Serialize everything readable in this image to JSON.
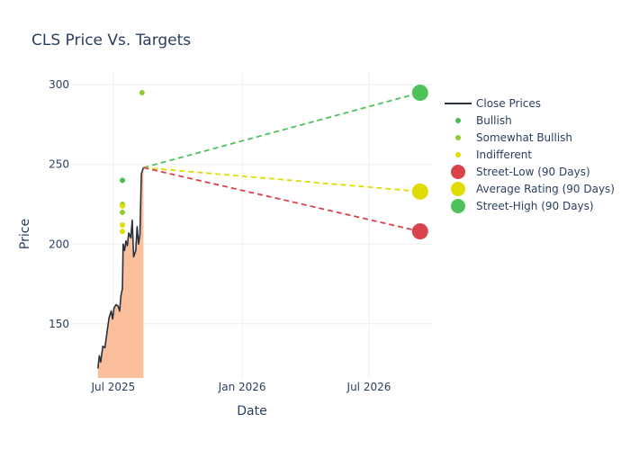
{
  "chart_data": {
    "type": "line",
    "title": "CLS Price Vs. Targets",
    "xlabel": "Date",
    "ylabel": "Price",
    "xlim": [
      "2025-05-03",
      "2026-09-29"
    ],
    "ylim": [
      116,
      308
    ],
    "x_ticks": [
      {
        "date": "2025-07-01",
        "label": "Jul 2025"
      },
      {
        "date": "2026-01-01",
        "label": "Jan 2026"
      },
      {
        "date": "2026-07-01",
        "label": "Jul 2026"
      }
    ],
    "y_ticks": [
      150,
      200,
      250,
      300
    ],
    "grid": true,
    "legend_placement": "top-right",
    "close_prices": [
      {
        "date": "2025-06-09",
        "price": 122
      },
      {
        "date": "2025-06-11",
        "price": 130
      },
      {
        "date": "2025-06-13",
        "price": 126
      },
      {
        "date": "2025-06-16",
        "price": 136
      },
      {
        "date": "2025-06-19",
        "price": 135
      },
      {
        "date": "2025-06-23",
        "price": 148
      },
      {
        "date": "2025-06-25",
        "price": 154
      },
      {
        "date": "2025-06-28",
        "price": 158
      },
      {
        "date": "2025-06-30",
        "price": 153
      },
      {
        "date": "2025-07-02",
        "price": 160
      },
      {
        "date": "2025-07-05",
        "price": 162
      },
      {
        "date": "2025-07-08",
        "price": 161
      },
      {
        "date": "2025-07-10",
        "price": 158
      },
      {
        "date": "2025-07-12",
        "price": 168
      },
      {
        "date": "2025-07-14",
        "price": 172
      },
      {
        "date": "2025-07-15",
        "price": 200
      },
      {
        "date": "2025-07-17",
        "price": 196
      },
      {
        "date": "2025-07-19",
        "price": 202
      },
      {
        "date": "2025-07-21",
        "price": 199
      },
      {
        "date": "2025-07-23",
        "price": 207
      },
      {
        "date": "2025-07-26",
        "price": 204
      },
      {
        "date": "2025-07-28",
        "price": 215
      },
      {
        "date": "2025-07-30",
        "price": 192
      },
      {
        "date": "2025-08-02",
        "price": 196
      },
      {
        "date": "2025-08-04",
        "price": 211
      },
      {
        "date": "2025-08-06",
        "price": 200
      },
      {
        "date": "2025-08-08",
        "price": 206
      },
      {
        "date": "2025-08-10",
        "price": 244
      },
      {
        "date": "2025-08-13",
        "price": 248
      }
    ],
    "rating_points": [
      {
        "date": "2025-07-14",
        "price": 240,
        "rating": "Bullish"
      },
      {
        "date": "2025-07-14",
        "price": 225,
        "rating": "Somewhat Bullish"
      },
      {
        "date": "2025-07-14",
        "price": 220,
        "rating": "Somewhat Bullish"
      },
      {
        "date": "2025-08-11",
        "price": 295,
        "rating": "Somewhat Bullish"
      },
      {
        "date": "2025-07-14",
        "price": 224,
        "rating": "Indifferent"
      },
      {
        "date": "2025-07-14",
        "price": 212,
        "rating": "Indifferent"
      },
      {
        "date": "2025-07-14",
        "price": 208,
        "rating": "Indifferent"
      }
    ],
    "targets": {
      "start": {
        "date": "2025-08-13",
        "price": 248
      },
      "end_date": "2026-09-12",
      "street_low": 208,
      "average": 233,
      "street_high": 295
    },
    "series": [
      {
        "name": "Close Prices",
        "color": "#2a3240",
        "marker": "line"
      },
      {
        "name": "Bullish",
        "color": "#4cbb50",
        "marker": "small-dot"
      },
      {
        "name": "Somewhat Bullish",
        "color": "#8fcb2f",
        "marker": "small-dot"
      },
      {
        "name": "Indifferent",
        "color": "#e2dc00",
        "marker": "small-dot"
      },
      {
        "name": "Street-Low (90 Days)",
        "color": "#d9434b",
        "marker": "large-dot"
      },
      {
        "name": "Average Rating (90 Days)",
        "color": "#e0dc00",
        "marker": "large-dot"
      },
      {
        "name": "Street-High (90 Days)",
        "color": "#4ec25a",
        "marker": "large-dot"
      }
    ],
    "area_fill_color": "#fbbf9c"
  }
}
